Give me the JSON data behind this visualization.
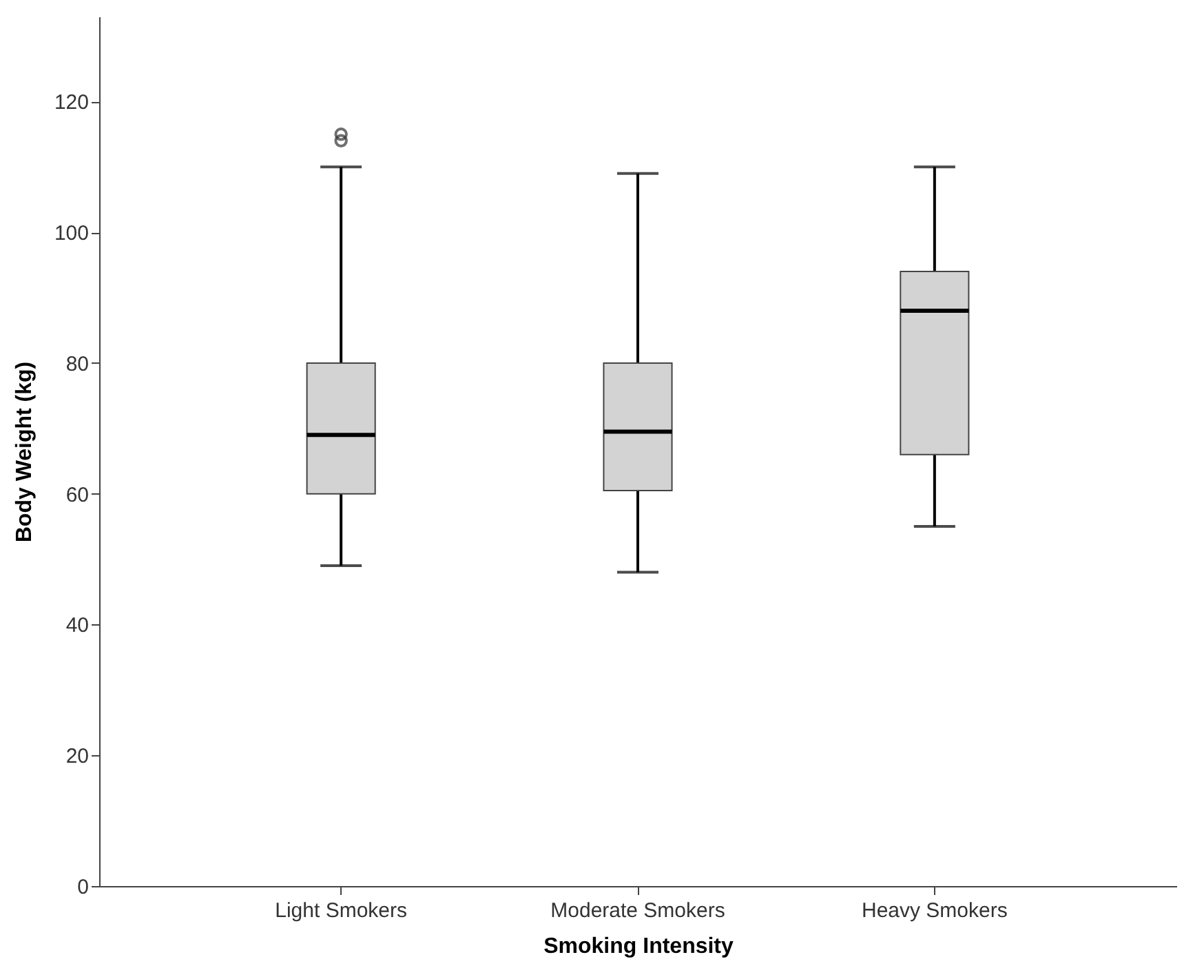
{
  "chart_data": {
    "type": "box",
    "xlabel": "Smoking Intensity",
    "ylabel": "Body Weight (kg)",
    "categories": [
      "Light Smokers",
      "Moderate Smokers",
      "Heavy Smokers"
    ],
    "boxes": [
      {
        "low": 49,
        "q1": 60,
        "median": 69,
        "q3": 80,
        "high": 110,
        "outliers": [
          115,
          114
        ]
      },
      {
        "low": 48,
        "q1": 60.5,
        "median": 69.5,
        "q3": 80,
        "high": 109
      },
      {
        "low": 55,
        "q1": 66,
        "median": 88,
        "q3": 94,
        "high": 110
      }
    ],
    "color": "#d3d3d3",
    "ylim": [
      0,
      133
    ],
    "yticks": [
      0,
      20,
      40,
      60,
      80,
      100,
      120
    ],
    "grid": false
  }
}
